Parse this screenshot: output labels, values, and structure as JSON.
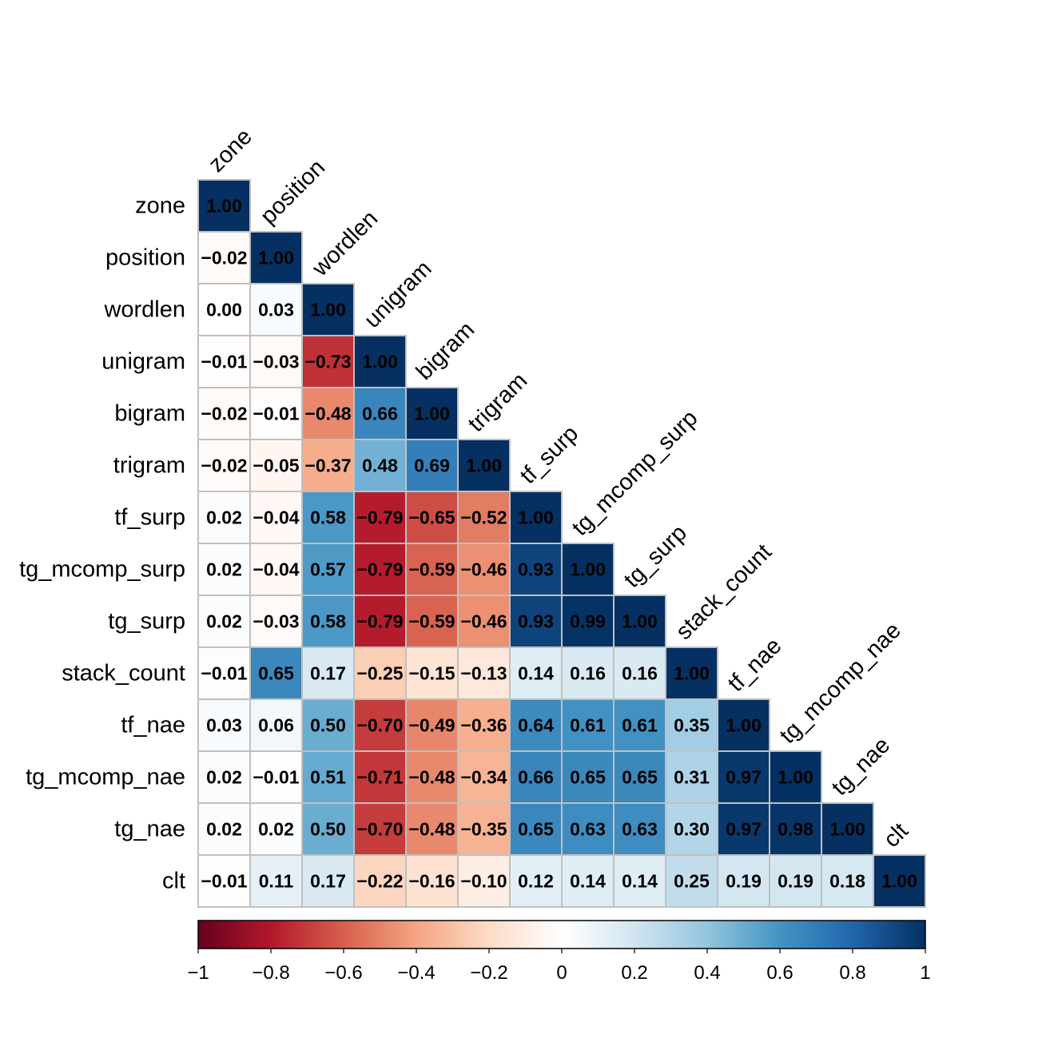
{
  "chart_data": {
    "type": "heatmap",
    "variables": [
      "zone",
      "position",
      "wordlen",
      "unigram",
      "bigram",
      "trigram",
      "tf_surp",
      "tg_mcomp_surp",
      "tg_surp",
      "stack_count",
      "tf_nae",
      "tg_mcomp_nae",
      "tg_nae",
      "clt"
    ],
    "matrix_lower": [
      [
        "1.00"
      ],
      [
        "−0.02",
        "1.00"
      ],
      [
        "0.00",
        "0.03",
        "1.00"
      ],
      [
        "−0.01",
        "−0.03",
        "−0.73",
        "1.00"
      ],
      [
        "−0.02",
        "−0.01",
        "−0.48",
        "0.66",
        "1.00"
      ],
      [
        "−0.02",
        "−0.05",
        "−0.37",
        "0.48",
        "0.69",
        "1.00"
      ],
      [
        "0.02",
        "−0.04",
        "0.58",
        "−0.79",
        "−0.65",
        "−0.52",
        "1.00"
      ],
      [
        "0.02",
        "−0.04",
        "0.57",
        "−0.79",
        "−0.59",
        "−0.46",
        "0.93",
        "1.00"
      ],
      [
        "0.02",
        "−0.03",
        "0.58",
        "−0.79",
        "−0.59",
        "−0.46",
        "0.93",
        "0.99",
        "1.00"
      ],
      [
        "−0.01",
        "0.65",
        "0.17",
        "−0.25",
        "−0.15",
        "−0.13",
        "0.14",
        "0.16",
        "0.16",
        "1.00"
      ],
      [
        "0.03",
        "0.06",
        "0.50",
        "−0.70",
        "−0.49",
        "−0.36",
        "0.64",
        "0.61",
        "0.61",
        "0.35",
        "1.00"
      ],
      [
        "0.02",
        "−0.01",
        "0.51",
        "−0.71",
        "−0.48",
        "−0.34",
        "0.66",
        "0.65",
        "0.65",
        "0.31",
        "0.97",
        "1.00"
      ],
      [
        "0.02",
        "0.02",
        "0.50",
        "−0.70",
        "−0.48",
        "−0.35",
        "0.65",
        "0.63",
        "0.63",
        "0.30",
        "0.97",
        "0.98",
        "1.00"
      ],
      [
        "−0.01",
        "0.11",
        "0.17",
        "−0.22",
        "−0.16",
        "−0.10",
        "0.12",
        "0.14",
        "0.14",
        "0.25",
        "0.19",
        "0.19",
        "0.18",
        "1.00"
      ]
    ],
    "value_range": [
      -1,
      1
    ],
    "colorbar_ticks": [
      "−1",
      "−0.8",
      "−0.6",
      "−0.4",
      "−0.2",
      "0",
      "0.2",
      "0.4",
      "0.6",
      "0.8",
      "1"
    ],
    "colorbar_tick_values": [
      -1,
      -0.8,
      -0.6,
      -0.4,
      -0.2,
      0,
      0.2,
      0.4,
      0.6,
      0.8,
      1
    ],
    "color_scale": [
      "#67001F",
      "#B2182B",
      "#D6604D",
      "#F4A582",
      "#FDDBC7",
      "#FFFFFF",
      "#D1E5F0",
      "#92C5DE",
      "#4393C3",
      "#2166AC",
      "#053061"
    ],
    "grid_color": "#C0C0C0",
    "legend_placement": "bottom"
  }
}
